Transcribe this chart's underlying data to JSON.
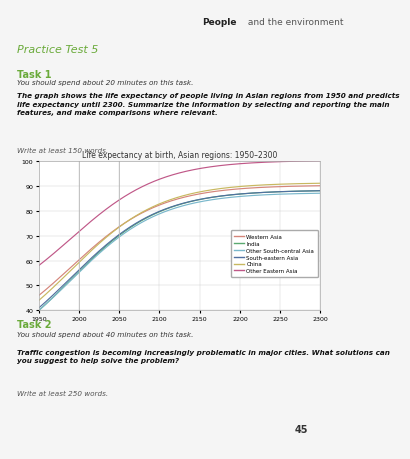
{
  "title": "Life expectancy at birth, Asian regions: 1950–2300",
  "ylim": [
    40,
    100
  ],
  "xlim": [
    1950,
    2300
  ],
  "yticks": [
    40,
    50,
    60,
    70,
    80,
    90,
    100
  ],
  "xticks": [
    1950,
    2000,
    2050,
    2100,
    2150,
    2200,
    2250,
    2300
  ],
  "series": [
    {
      "name": "Western Asia",
      "y0": 46,
      "y_max": 90,
      "color": "#d4857a"
    },
    {
      "name": "India",
      "y0": 40,
      "y_max": 88,
      "color": "#5aaa70"
    },
    {
      "name": "Other South-central Asia",
      "y0": 40,
      "y_max": 87,
      "color": "#7ab8cc"
    },
    {
      "name": "South-eastern Asia",
      "y0": 41,
      "y_max": 88,
      "color": "#5070a0"
    },
    {
      "name": "China",
      "y0": 44,
      "y_max": 91,
      "color": "#c8b860"
    },
    {
      "name": "Other Eastern Asia",
      "y0": 58,
      "y_max": 100,
      "color": "#c05888"
    }
  ],
  "header_bg": "#e0e0e0",
  "header_text_bold": "People",
  "header_text_normal": " and the environment",
  "green_color": "#6aaa3a",
  "section_bg": "#d0d0d0",
  "section_title": "Practice Test 5",
  "task1_bg": "#d8edc8",
  "task1_title": "Task 1",
  "task1_line1": "You should spend about 20 minutes on this task.",
  "task1_line2": "The graph shows the life expectancy of people living in Asian regions from 1950 and predicts life expectancy until 2300. Summarize the information by selecting and reporting the main features, and make comparisons where relevant.",
  "task1_line3": "Write at least 150 words.",
  "task2_bg": "#d8edc8",
  "task2_title": "Task 2",
  "task2_line1": "You should spend about 40 minutes on this task.",
  "task2_line2": "Traffic congestion is becoming increasingly problematic in major cities. What solutions can you suggest to help solve the problem?",
  "task2_line3": "Write at least 250 words.",
  "footer_bg": "#6aaa3a",
  "page_number": "45",
  "page_bg": "#f5f5f5"
}
